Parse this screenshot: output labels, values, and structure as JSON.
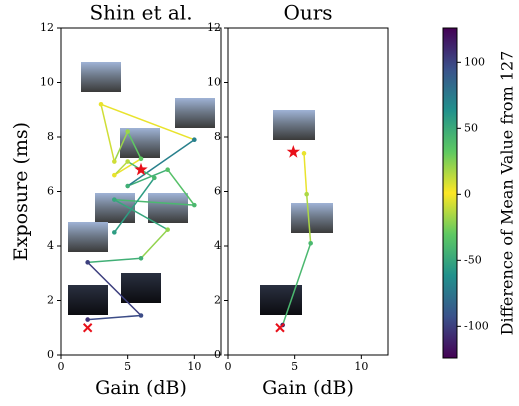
{
  "chart_data": [
    {
      "type": "line",
      "title": "Shin et al.",
      "xlabel": "Gain (dB)",
      "ylabel": "Exposure (ms)",
      "xlim": [
        0,
        12
      ],
      "ylim": [
        0,
        12
      ],
      "xticks": [
        0,
        5,
        10
      ],
      "yticks": [
        0,
        2,
        4,
        6,
        8,
        10,
        12
      ],
      "x": [
        2.0,
        6.0,
        2.0,
        6.0,
        8.0,
        4.0,
        10.0,
        8.0,
        5.0,
        10.0,
        3.0,
        4.0,
        5.0,
        6.0,
        4.0,
        5.0,
        7.0,
        4.0
      ],
      "y": [
        1.3,
        1.45,
        3.4,
        3.55,
        4.6,
        5.7,
        5.5,
        6.8,
        6.2,
        7.9,
        9.2,
        7.1,
        8.2,
        7.2,
        6.6,
        7.1,
        6.5,
        4.5
      ],
      "diff": [
        -105,
        -95,
        -100,
        -45,
        -20,
        -50,
        -40,
        -35,
        -45,
        -70,
        5,
        10,
        20,
        -30,
        5,
        15,
        -40,
        -55
      ],
      "start": [
        2.0,
        1.0
      ],
      "end": [
        6.0,
        6.8
      ]
    },
    {
      "type": "line",
      "title": "Ours",
      "xlabel": "Gain (dB)",
      "xlim": [
        0,
        12
      ],
      "ylim": [
        0,
        12
      ],
      "xticks": [
        0,
        5,
        10
      ],
      "yticks": [
        0,
        2,
        4,
        6,
        8,
        10,
        12
      ],
      "x": [
        4.1,
        6.2,
        5.9,
        5.7
      ],
      "y": [
        1.1,
        4.1,
        5.9,
        7.4
      ],
      "diff": [
        -110,
        -40,
        -15,
        5
      ],
      "start": [
        3.9,
        1.0
      ],
      "end": [
        4.9,
        7.45
      ]
    },
    {
      "type": "colorbar",
      "label": "Difference of Mean Value from 127",
      "lim": [
        -124,
        126
      ],
      "ticks": [
        -100,
        -50,
        0,
        50,
        100
      ],
      "colormap": [
        "#440154",
        "#3b528b",
        "#21918c",
        "#5ec962",
        "#fde725",
        "#5ec962",
        "#21918c",
        "#3b528b",
        "#440154"
      ]
    }
  ]
}
